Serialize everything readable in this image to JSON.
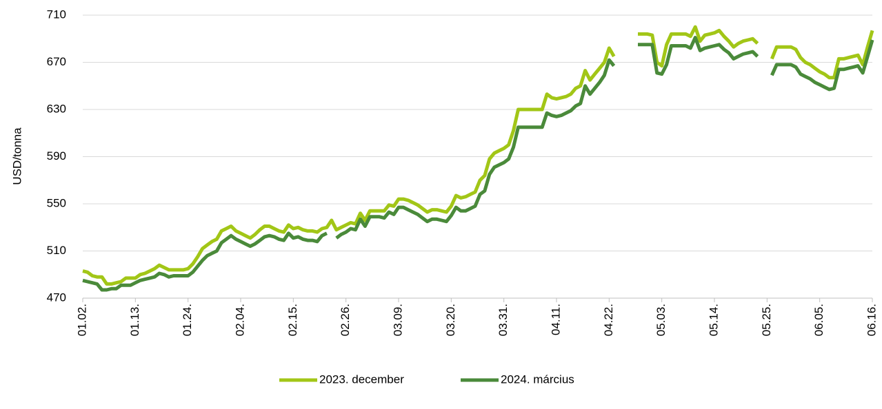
{
  "chart_data": {
    "type": "line",
    "y_label": "USD/tonna",
    "categories": [
      "01.02.",
      null,
      null,
      null,
      null,
      null,
      null,
      null,
      null,
      null,
      null,
      "01.13.",
      null,
      null,
      null,
      null,
      null,
      null,
      null,
      null,
      null,
      null,
      "01.24.",
      null,
      null,
      null,
      null,
      null,
      null,
      null,
      null,
      null,
      null,
      "02.04.",
      null,
      null,
      null,
      null,
      null,
      null,
      null,
      null,
      null,
      null,
      "02.15.",
      null,
      null,
      null,
      null,
      null,
      null,
      null,
      null,
      null,
      null,
      "02.26.",
      null,
      null,
      null,
      null,
      null,
      null,
      null,
      null,
      null,
      null,
      "03.09.",
      null,
      null,
      null,
      null,
      null,
      null,
      null,
      null,
      null,
      null,
      "03.20.",
      null,
      null,
      null,
      null,
      null,
      null,
      null,
      null,
      null,
      null,
      "03.31.",
      null,
      null,
      null,
      null,
      null,
      null,
      null,
      null,
      null,
      null,
      "04.11.",
      null,
      null,
      null,
      null,
      null,
      null,
      null,
      null,
      null,
      null,
      "04.22.",
      null,
      null,
      null,
      null,
      null,
      null,
      null,
      null,
      null,
      null,
      "05.03.",
      null,
      null,
      null,
      null,
      null,
      null,
      null,
      null,
      null,
      null,
      "05.14.",
      null,
      null,
      null,
      null,
      null,
      null,
      null,
      null,
      null,
      null,
      "05.25.",
      null,
      null,
      null,
      null,
      null,
      null,
      null,
      null,
      null,
      null,
      "06.05.",
      null,
      null,
      null,
      null,
      null,
      null,
      null,
      null,
      null,
      null,
      "06.16."
    ],
    "series": [
      {
        "name": "2023. december",
        "color": "#a2c617",
        "values": [
          493,
          492,
          489,
          488,
          488,
          482,
          482,
          483,
          484,
          487,
          487,
          487,
          490,
          491,
          493,
          495,
          498,
          496,
          494,
          494,
          494,
          494,
          495,
          499,
          505,
          512,
          515,
          518,
          520,
          527,
          529,
          531,
          527,
          525,
          523,
          521,
          524,
          528,
          531,
          531,
          529,
          527,
          526,
          532,
          529,
          530,
          528,
          527,
          527,
          526,
          529,
          530,
          536,
          528,
          530,
          532,
          534,
          533,
          542,
          536,
          544,
          544,
          544,
          544,
          549,
          548,
          554,
          554,
          553,
          551,
          549,
          546,
          543,
          545,
          545,
          544,
          543,
          548,
          557,
          555,
          556,
          558,
          560,
          570,
          574,
          588,
          593,
          595,
          597,
          600,
          612,
          630,
          630,
          630,
          630,
          630,
          630,
          643,
          640,
          639,
          640,
          641,
          643,
          648,
          650,
          663,
          655,
          660,
          665,
          670,
          682,
          675,
          null,
          null,
          null,
          null,
          694,
          694,
          694,
          693,
          670,
          667,
          685,
          694,
          694,
          694,
          694,
          692,
          700,
          688,
          693,
          694,
          695,
          697,
          692,
          688,
          683,
          686,
          688,
          689,
          690,
          686,
          null,
          null,
          673,
          683,
          683,
          683,
          683,
          681,
          674,
          670,
          668,
          665,
          662,
          660,
          657,
          657,
          673,
          673,
          674,
          675,
          676,
          668,
          683,
          697
        ]
      },
      {
        "name": "2024. március",
        "color": "#4a8a3a",
        "values": [
          485,
          484,
          483,
          482,
          477,
          477,
          478,
          478,
          481,
          481,
          481,
          483,
          485,
          486,
          487,
          488,
          491,
          490,
          488,
          489,
          489,
          489,
          489,
          492,
          497,
          502,
          506,
          508,
          510,
          517,
          520,
          523,
          520,
          518,
          516,
          514,
          516,
          519,
          522,
          523,
          522,
          520,
          519,
          525,
          521,
          522,
          520,
          519,
          519,
          518,
          523,
          525,
          null,
          521,
          524,
          526,
          529,
          528,
          537,
          531,
          539,
          539,
          539,
          538,
          543,
          541,
          547,
          547,
          545,
          543,
          541,
          538,
          535,
          537,
          537,
          536,
          535,
          540,
          547,
          544,
          544,
          546,
          548,
          558,
          561,
          575,
          581,
          583,
          585,
          588,
          598,
          615,
          615,
          615,
          615,
          615,
          615,
          627,
          625,
          624,
          625,
          627,
          629,
          633,
          635,
          650,
          643,
          648,
          653,
          659,
          672,
          667,
          null,
          null,
          null,
          null,
          685,
          685,
          685,
          685,
          661,
          660,
          668,
          684,
          684,
          684,
          684,
          682,
          691,
          680,
          682,
          683,
          684,
          685,
          681,
          678,
          673,
          675,
          677,
          678,
          679,
          675,
          null,
          null,
          659,
          668,
          668,
          668,
          668,
          666,
          660,
          658,
          656,
          653,
          651,
          649,
          647,
          648,
          664,
          664,
          665,
          666,
          667,
          661,
          675,
          689
        ]
      }
    ],
    "ylim": [
      470,
      710
    ],
    "yticks": [
      470,
      510,
      550,
      590,
      630,
      670,
      710
    ],
    "grid": true,
    "legend": "bottom"
  }
}
